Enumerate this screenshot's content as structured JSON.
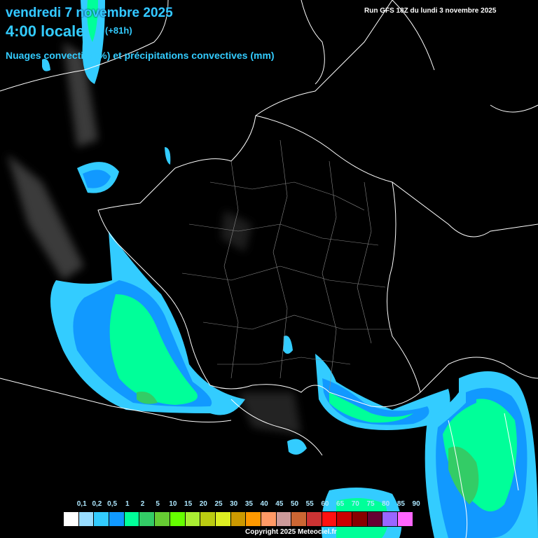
{
  "header": {
    "date": "vendredi 7 novembre 2025",
    "time": "4:00 locale",
    "lead": "(+81h)",
    "product": "Nuages convectifs (%) et précipitations convectives (mm)",
    "run": "Run GFS 18Z du lundi 3 novembre 2025"
  },
  "legend": {
    "labels": [
      "0,1",
      "0,2",
      "0,5",
      "1",
      "2",
      "5",
      "10",
      "15",
      "20",
      "25",
      "30",
      "35",
      "40",
      "45",
      "50",
      "55",
      "60",
      "65",
      "70",
      "75",
      "80",
      "85",
      "90"
    ],
    "colors": [
      "#ffffff",
      "#99ddff",
      "#33ccff",
      "#1199ff",
      "#00ff99",
      "#33cc66",
      "#66cc33",
      "#66ff00",
      "#aaee33",
      "#bbcc11",
      "#ddee22",
      "#cc9900",
      "#ff9900",
      "#ff9966",
      "#cc9999",
      "#cc6633",
      "#cc3333",
      "#ff1111",
      "#cc0000",
      "#880000",
      "#660033",
      "#9966ff",
      "#ff66ff"
    ]
  },
  "footer": {
    "copyright": "Copyright 2025 Meteociel.fr"
  }
}
